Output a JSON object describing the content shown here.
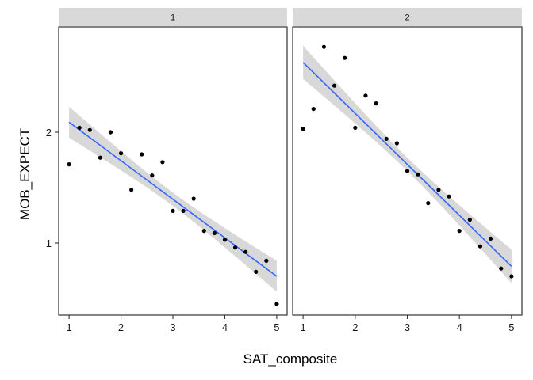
{
  "chart_data": {
    "type": "scatter",
    "facet_by": "panel",
    "xlabel": "SAT_composite",
    "ylabel": "MOB_EXPECT",
    "xlim": [
      0.8,
      5.2
    ],
    "ylim": [
      0.35,
      2.95
    ],
    "x_ticks": [
      1,
      2,
      3,
      4,
      5
    ],
    "y_ticks": [
      1,
      2
    ],
    "grid": false,
    "colors": {
      "points": "#000000",
      "fit_line": "#3366FF",
      "ribbon": "#BEBEBE",
      "strip": "#D9D9D9",
      "frame": "#333333"
    },
    "panels": [
      {
        "strip_label": "1",
        "points": [
          {
            "x": 1.0,
            "y": 1.71
          },
          {
            "x": 1.2,
            "y": 2.04
          },
          {
            "x": 1.4,
            "y": 2.02
          },
          {
            "x": 1.6,
            "y": 1.77
          },
          {
            "x": 1.8,
            "y": 2.0
          },
          {
            "x": 2.0,
            "y": 1.81
          },
          {
            "x": 2.2,
            "y": 1.48
          },
          {
            "x": 2.4,
            "y": 1.8
          },
          {
            "x": 2.6,
            "y": 1.61
          },
          {
            "x": 2.8,
            "y": 1.73
          },
          {
            "x": 3.0,
            "y": 1.29
          },
          {
            "x": 3.2,
            "y": 1.29
          },
          {
            "x": 3.4,
            "y": 1.4
          },
          {
            "x": 3.6,
            "y": 1.11
          },
          {
            "x": 3.8,
            "y": 1.09
          },
          {
            "x": 4.0,
            "y": 1.03
          },
          {
            "x": 4.2,
            "y": 0.96
          },
          {
            "x": 4.4,
            "y": 0.92
          },
          {
            "x": 4.6,
            "y": 0.74
          },
          {
            "x": 4.8,
            "y": 0.84
          },
          {
            "x": 5.0,
            "y": 0.45
          }
        ],
        "fit": {
          "x": [
            1.0,
            5.0
          ],
          "y": [
            2.09,
            0.7
          ],
          "band_at_ends": 0.14,
          "band_at_center": 0.06
        }
      },
      {
        "strip_label": "2",
        "points": [
          {
            "x": 1.0,
            "y": 2.03
          },
          {
            "x": 1.2,
            "y": 2.21
          },
          {
            "x": 1.4,
            "y": 2.77
          },
          {
            "x": 1.6,
            "y": 2.42
          },
          {
            "x": 1.8,
            "y": 2.67
          },
          {
            "x": 2.0,
            "y": 2.04
          },
          {
            "x": 2.2,
            "y": 2.33
          },
          {
            "x": 2.4,
            "y": 2.26
          },
          {
            "x": 2.6,
            "y": 1.94
          },
          {
            "x": 2.8,
            "y": 1.9
          },
          {
            "x": 3.0,
            "y": 1.65
          },
          {
            "x": 3.2,
            "y": 1.62
          },
          {
            "x": 3.4,
            "y": 1.36
          },
          {
            "x": 3.6,
            "y": 1.48
          },
          {
            "x": 3.8,
            "y": 1.42
          },
          {
            "x": 4.0,
            "y": 1.11
          },
          {
            "x": 4.2,
            "y": 1.21
          },
          {
            "x": 4.4,
            "y": 0.97
          },
          {
            "x": 4.6,
            "y": 1.04
          },
          {
            "x": 4.8,
            "y": 0.77
          },
          {
            "x": 5.0,
            "y": 0.7
          }
        ],
        "fit": {
          "x": [
            1.0,
            5.0
          ],
          "y": [
            2.63,
            0.79
          ],
          "band_at_ends": 0.15,
          "band_at_center": 0.06
        }
      }
    ]
  }
}
